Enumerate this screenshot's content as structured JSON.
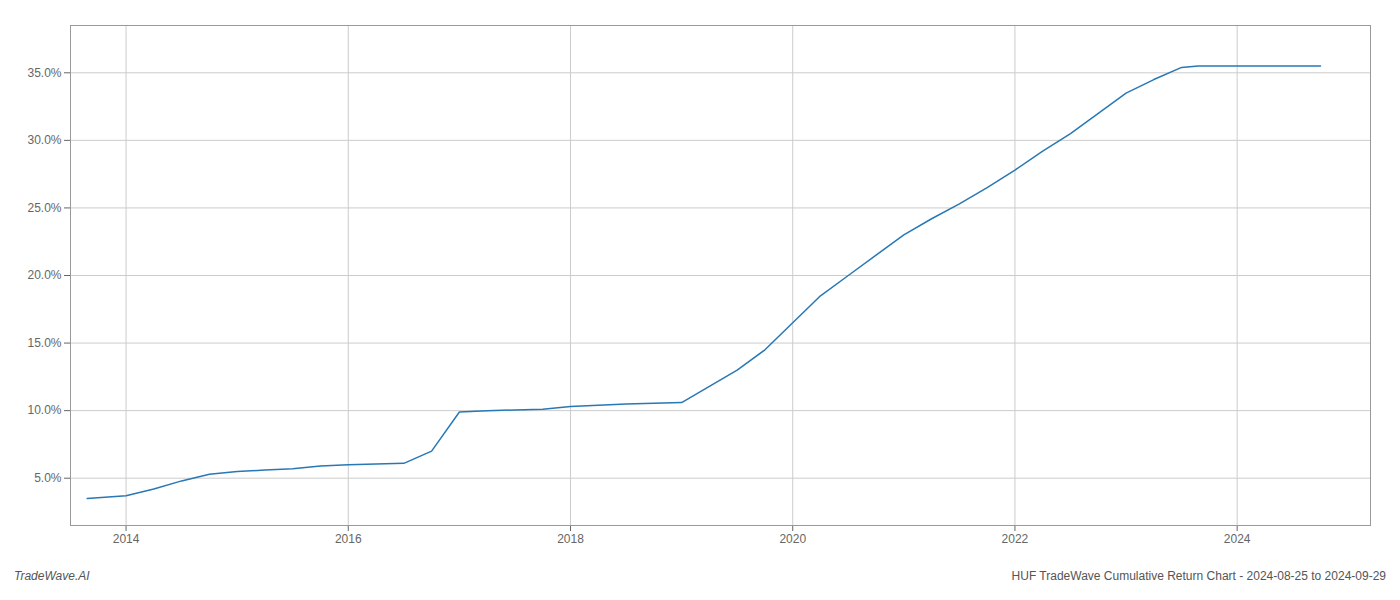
{
  "chart_data": {
    "type": "line",
    "title": "HUF TradeWave Cumulative Return Chart - 2024-08-25 to 2024-09-29",
    "annotations": [
      "TradeWave.AI"
    ],
    "color": "#2878b5",
    "grid": true,
    "x": [
      2013.65,
      2014.0,
      2014.25,
      2014.5,
      2014.75,
      2015.0,
      2015.25,
      2015.5,
      2015.75,
      2016.0,
      2016.25,
      2016.5,
      2016.75,
      2017.0,
      2017.25,
      2017.5,
      2017.75,
      2018.0,
      2018.25,
      2018.5,
      2018.75,
      2019.0,
      2019.25,
      2019.5,
      2019.75,
      2020.0,
      2020.25,
      2020.5,
      2020.75,
      2021.0,
      2021.25,
      2021.5,
      2021.75,
      2022.0,
      2022.25,
      2022.5,
      2022.75,
      2023.0,
      2023.25,
      2023.5,
      2023.65,
      2024.0,
      2024.5,
      2024.75
    ],
    "values": [
      3.5,
      3.7,
      4.2,
      4.8,
      5.3,
      5.5,
      5.6,
      5.7,
      5.9,
      6.0,
      6.05,
      6.1,
      7.0,
      9.9,
      10.0,
      10.05,
      10.1,
      10.3,
      10.4,
      10.5,
      10.55,
      10.6,
      11.8,
      13.0,
      14.5,
      16.5,
      18.5,
      20.0,
      21.5,
      23.0,
      24.2,
      25.3,
      26.5,
      27.8,
      29.2,
      30.5,
      32.0,
      33.5,
      34.5,
      35.4,
      35.5,
      35.5,
      35.5,
      35.5
    ],
    "xlim": [
      2013.5,
      2025.2
    ],
    "ylim": [
      1.5,
      38.5
    ],
    "xticks": [
      2014,
      2016,
      2018,
      2020,
      2022,
      2024
    ],
    "yticks": [
      {
        "value": 5.0,
        "label": "5.0%"
      },
      {
        "value": 10.0,
        "label": "10.0%"
      },
      {
        "value": 15.0,
        "label": "15.0%"
      },
      {
        "value": 20.0,
        "label": "20.0%"
      },
      {
        "value": 25.0,
        "label": "25.0%"
      },
      {
        "value": 30.0,
        "label": "30.0%"
      },
      {
        "value": 35.0,
        "label": "35.0%"
      }
    ]
  }
}
